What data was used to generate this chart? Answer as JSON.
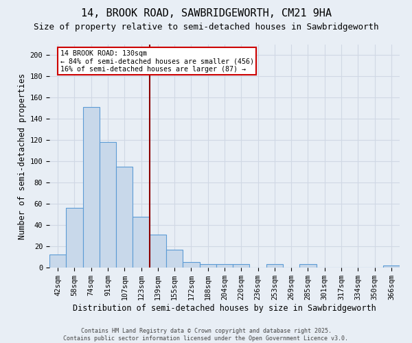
{
  "title": "14, BROOK ROAD, SAWBRIDGEWORTH, CM21 9HA",
  "subtitle": "Size of property relative to semi-detached houses in Sawbridgeworth",
  "xlabel": "Distribution of semi-detached houses by size in Sawbridgeworth",
  "ylabel": "Number of semi-detached properties",
  "footer1": "Contains HM Land Registry data © Crown copyright and database right 2025.",
  "footer2": "Contains public sector information licensed under the Open Government Licence v3.0.",
  "categories": [
    "42sqm",
    "58sqm",
    "74sqm",
    "91sqm",
    "107sqm",
    "123sqm",
    "139sqm",
    "155sqm",
    "172sqm",
    "188sqm",
    "204sqm",
    "220sqm",
    "236sqm",
    "253sqm",
    "269sqm",
    "285sqm",
    "301sqm",
    "317sqm",
    "334sqm",
    "350sqm",
    "366sqm"
  ],
  "values": [
    12,
    56,
    151,
    118,
    95,
    48,
    31,
    17,
    5,
    3,
    3,
    3,
    0,
    3,
    0,
    3,
    0,
    0,
    0,
    0,
    2
  ],
  "bar_color": "#c8d8ea",
  "bar_edge_color": "#5b9bd5",
  "highlight_line_color": "#8b0000",
  "annotation_title": "14 BROOK ROAD: 130sqm",
  "annotation_line1": "← 84% of semi-detached houses are smaller (456)",
  "annotation_line2": "16% of semi-detached houses are larger (87) →",
  "annotation_box_color": "#ffffff",
  "annotation_box_edge": "#cc0000",
  "ylim": [
    0,
    210
  ],
  "yticks": [
    0,
    20,
    40,
    60,
    80,
    100,
    120,
    140,
    160,
    180,
    200
  ],
  "grid_color": "#d0d8e4",
  "bg_color": "#e8eef5",
  "title_fontsize": 11,
  "subtitle_fontsize": 9,
  "axis_label_fontsize": 8.5,
  "tick_fontsize": 7.5,
  "footer_fontsize": 6
}
